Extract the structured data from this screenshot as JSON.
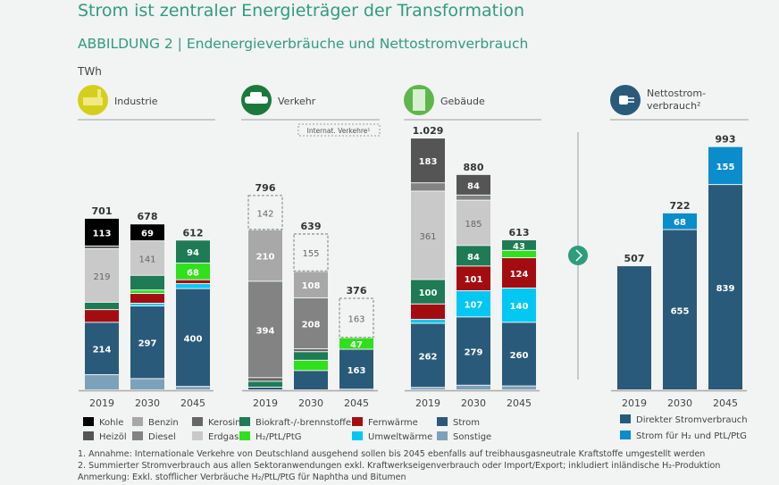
{
  "title": "Strom ist zentraler Energieträger der Transformation",
  "subtitle": "ABBILDUNG 2 | Endenergieverbräuche und Nettostromverbrauch",
  "unit": "TWh",
  "colors": {
    "Kohle": "#000000",
    "Heizöl": "#555555",
    "Benzin": "#a8a8a8",
    "Diesel": "#838383",
    "Kerosin": "#666666",
    "Erdgas": "#c9c9c9",
    "Biokraft-/-brennstoffe": "#1e7b55",
    "H2/PtL/PtG": "#2fe01c",
    "Fernwärme": "#a30d12",
    "Umweltwärme": "#00c8f2",
    "Strom": "#2a5a7a",
    "Sonstige": "#7ba2ba",
    "Internat. Verkehre": "#f2f3f3",
    "Direkter Stromverbrauch": "#2a5a7a",
    "Strom für H2 und PtL/PtG": "#0a8dca",
    "accent": "#2f9d7c"
  },
  "chart_data": {
    "type": "bar",
    "stacked": true,
    "ylabel": "TWh",
    "panels": [
      {
        "name": "Industrie",
        "icon": "factory-icon",
        "icon_color": "#d4cf1c",
        "categories": [
          "2019",
          "2030",
          "2045"
        ],
        "totals": [
          "701",
          "678",
          "612"
        ],
        "bars": [
          [
            {
              "s": "Sonstige",
              "v": 62
            },
            {
              "s": "Strom",
              "v": 214,
              "label": true
            },
            {
              "s": "Fernwärme",
              "v": 52
            },
            {
              "s": "Biokraft-/-brennstoffe",
              "v": 30
            },
            {
              "s": "Erdgas",
              "v": 219,
              "label": true
            },
            {
              "s": "Heizöl",
              "v": 11
            },
            {
              "s": "Kohle",
              "v": 113,
              "label": true
            }
          ],
          [
            {
              "s": "Sonstige",
              "v": 46
            },
            {
              "s": "Strom",
              "v": 297,
              "label": true
            },
            {
              "s": "Umweltwärme",
              "v": 11
            },
            {
              "s": "Fernwärme",
              "v": 40
            },
            {
              "s": "H2/PtL/PtG",
              "v": 14
            },
            {
              "s": "Biokraft-/-brennstoffe",
              "v": 60
            },
            {
              "s": "Erdgas",
              "v": 141,
              "label": true
            },
            {
              "s": "Kohle",
              "v": 69,
              "label": true
            }
          ],
          [
            {
              "s": "Sonstige",
              "v": 14
            },
            {
              "s": "Strom",
              "v": 400,
              "label": true
            },
            {
              "s": "Umweltwärme",
              "v": 20
            },
            {
              "s": "Fernwärme",
              "v": 16
            },
            {
              "s": "H2/PtL/PtG",
              "v": 68,
              "label": true
            },
            {
              "s": "Biokraft-/-brennstoffe",
              "v": 94,
              "label": true
            }
          ]
        ]
      },
      {
        "name": "Verkehr",
        "icon": "car-icon",
        "icon_color": "#1a7a3c",
        "note": "Internat. Verkehre¹",
        "categories": [
          "2019",
          "2030",
          "2045"
        ],
        "totals": [
          "796",
          "639",
          "376"
        ],
        "bars": [
          [
            {
              "s": "Strom",
              "v": 11
            },
            {
              "s": "Biokraft-/-brennstoffe",
              "v": 24
            },
            {
              "s": "Kerosin",
              "v": 15
            },
            {
              "s": "Diesel",
              "v": 394,
              "label": true
            },
            {
              "s": "Benzin",
              "v": 210,
              "label": true
            },
            {
              "s": "Internat. Verkehre",
              "v": 142,
              "label": true
            }
          ],
          [
            {
              "s": "Strom",
              "v": 79
            },
            {
              "s": "H2/PtL/PtG",
              "v": 42
            },
            {
              "s": "Biokraft-/-brennstoffe",
              "v": 35
            },
            {
              "s": "Kerosin",
              "v": 12
            },
            {
              "s": "Diesel",
              "v": 208,
              "label": true
            },
            {
              "s": "Benzin",
              "v": 108,
              "label": true
            },
            {
              "s": "Internat. Verkehre",
              "v": 155,
              "label": true
            }
          ],
          [
            {
              "s": "Sonstige",
              "v": 3
            },
            {
              "s": "Strom",
              "v": 163,
              "label": true
            },
            {
              "s": "H2/PtL/PtG",
              "v": 47,
              "label": true
            },
            {
              "s": "Internat. Verkehre",
              "v": 163,
              "label": true
            }
          ]
        ]
      },
      {
        "name": "Gebäude",
        "icon": "building-icon",
        "icon_color": "#5cb84a",
        "categories": [
          "2019",
          "2030",
          "2045"
        ],
        "totals": [
          "1.029",
          "880",
          "613"
        ],
        "bars": [
          [
            {
              "s": "Sonstige",
              "v": 10
            },
            {
              "s": "Strom",
              "v": 262,
              "label": true
            },
            {
              "s": "Umweltwärme",
              "v": 16
            },
            {
              "s": "Fernwärme",
              "v": 63
            },
            {
              "s": "Biokraft-/-brennstoffe",
              "v": 100,
              "label": true
            },
            {
              "s": "Erdgas",
              "v": 361,
              "label": true
            },
            {
              "s": "Diesel",
              "v": 34
            },
            {
              "s": "Heizöl",
              "v": 183,
              "label": true
            }
          ],
          [
            {
              "s": "Sonstige",
              "v": 19
            },
            {
              "s": "Strom",
              "v": 279,
              "label": true
            },
            {
              "s": "Umweltwärme",
              "v": 107,
              "label": true
            },
            {
              "s": "Fernwärme",
              "v": 101,
              "label": true
            },
            {
              "s": "Biokraft-/-brennstoffe",
              "v": 84,
              "label": true
            },
            {
              "s": "Erdgas",
              "v": 185,
              "label": true
            },
            {
              "s": "Diesel",
              "v": 21
            },
            {
              "s": "Heizöl",
              "v": 84,
              "label": true
            }
          ],
          [
            {
              "s": "Sonstige",
              "v": 16
            },
            {
              "s": "Strom",
              "v": 260,
              "label": true
            },
            {
              "s": "Umweltwärme",
              "v": 140,
              "label": true
            },
            {
              "s": "Fernwärme",
              "v": 124,
              "label": true
            },
            {
              "s": "H2/PtL/PtG",
              "v": 30
            },
            {
              "s": "Biokraft-/-brennstoffe",
              "v": 43,
              "label": true
            }
          ]
        ]
      },
      {
        "name": "Nettostrom-",
        "name2": "verbrauch²",
        "icon": "plug-icon",
        "icon_color": "#2a5a7a",
        "categories": [
          "2019",
          "2030",
          "2045"
        ],
        "totals": [
          "507",
          "722",
          "993"
        ],
        "bars": [
          [
            {
              "s": "Direkter Stromverbrauch",
              "v": 507
            }
          ],
          [
            {
              "s": "Direkter Stromverbrauch",
              "v": 655,
              "label": true
            },
            {
              "s": "Strom für H2 und PtL/PtG",
              "v": 68,
              "label": true
            }
          ],
          [
            {
              "s": "Direkter Stromverbrauch",
              "v": 839,
              "label": true
            },
            {
              "s": "Strom für H2 und PtL/PtG",
              "v": 155,
              "label": true
            }
          ]
        ]
      }
    ],
    "legend": [
      {
        "key": "Kohle",
        "label": "Kohle"
      },
      {
        "key": "Benzin",
        "label": "Benzin"
      },
      {
        "key": "Kerosin",
        "label": "Kerosin"
      },
      {
        "key": "Biokraft-/-brennstoffe",
        "label": "Biokraft-/-brennstoffe"
      },
      {
        "key": "Fernwärme",
        "label": "Fernwärme"
      },
      {
        "key": "Strom",
        "label": "Strom"
      },
      {
        "key": "Heizöl",
        "label": "Heizöl"
      },
      {
        "key": "Diesel",
        "label": "Diesel"
      },
      {
        "key": "Erdgas",
        "label": "Erdgas"
      },
      {
        "key": "H2/PtL/PtG",
        "label": "H₂/PtL/PtG"
      },
      {
        "key": "Umweltwärme",
        "label": "Umweltwärme"
      },
      {
        "key": "Sonstige",
        "label": "Sonstige"
      }
    ],
    "legend_netto": [
      {
        "key": "Direkter Stromverbrauch",
        "label": "Direkter Stromverbrauch"
      },
      {
        "key": "Strom für H2 und PtL/PtG",
        "label": "Strom für H₂ und PtL/PtG"
      }
    ]
  },
  "footnotes": [
    "1. Annahme: Internationale Verkehre von Deutschland ausgehend sollen bis 2045 ebenfalls auf treibhausgasneutrale Kraftstoffe umgestellt werden",
    "2. Summierter Stromverbrauch aus allen Sektoranwendungen exkl. Kraftwerkseigenverbrauch oder Import/Export; inkludiert inländische H₂-Produktion",
    "Anmerkung: Exkl. stofflicher Verbräuche H₂/PtL/PtG für Naphtha und Bitumen"
  ]
}
